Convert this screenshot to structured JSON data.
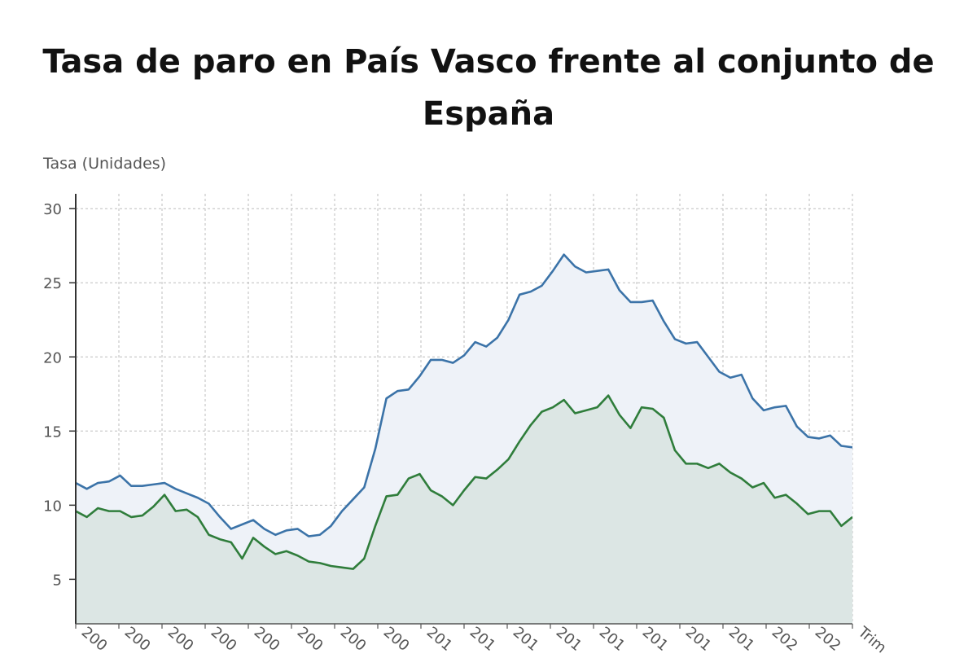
{
  "chart_data": {
    "type": "area",
    "title": "Tasa de paro en País Vasco frente al conjunto de España",
    "ylabel": "Tasa (Unidades)",
    "xlabel": "",
    "ylim": [
      2,
      31
    ],
    "yticks": [
      5,
      10,
      15,
      20,
      25,
      30
    ],
    "grid": true,
    "xtick_labels": [
      "200",
      "200",
      "200",
      "200",
      "200",
      "200",
      "200",
      "200",
      "201",
      "201",
      "201",
      "201",
      "201",
      "201",
      "201",
      "201",
      "202",
      "202",
      "Trim"
    ],
    "series": [
      {
        "color": "#3b73a8",
        "fill": "#eef2f8",
        "values": [
          11.5,
          11.1,
          11.5,
          11.6,
          12.0,
          11.3,
          11.3,
          11.4,
          11.5,
          11.1,
          10.8,
          10.5,
          10.1,
          9.2,
          8.4,
          8.7,
          9.0,
          8.4,
          8.0,
          8.3,
          8.4,
          7.9,
          8.0,
          8.6,
          9.6,
          10.4,
          11.2,
          13.8,
          17.2,
          17.7,
          17.8,
          18.7,
          19.8,
          19.8,
          19.6,
          20.1,
          21.0,
          20.7,
          21.3,
          22.5,
          24.2,
          24.4,
          24.8,
          25.8,
          26.9,
          26.1,
          25.7,
          25.8,
          25.9,
          24.5,
          23.7,
          23.7,
          23.8,
          22.4,
          21.2,
          20.9,
          21.0,
          20.0,
          19.0,
          18.6,
          18.8,
          17.2,
          16.4,
          16.6,
          16.7,
          15.3,
          14.6,
          14.5,
          14.7,
          14.0,
          13.9
        ]
      },
      {
        "color": "#2f7d3b",
        "fill": "#dce6e4",
        "values": [
          9.6,
          9.2,
          9.8,
          9.6,
          9.6,
          9.2,
          9.3,
          9.9,
          10.7,
          9.6,
          9.7,
          9.2,
          8.0,
          7.7,
          7.5,
          6.4,
          7.8,
          7.2,
          6.7,
          6.9,
          6.6,
          6.2,
          6.1,
          5.9,
          5.8,
          5.7,
          6.4,
          8.6,
          10.6,
          10.7,
          11.8,
          12.1,
          11.0,
          10.6,
          10.0,
          11.0,
          11.9,
          11.8,
          12.4,
          13.1,
          14.3,
          15.4,
          16.3,
          16.6,
          17.1,
          16.2,
          16.4,
          16.6,
          17.4,
          16.1,
          15.2,
          16.6,
          16.5,
          15.9,
          13.7,
          12.8,
          12.8,
          12.5,
          12.8,
          12.2,
          11.8,
          11.2,
          11.5,
          10.5,
          10.7,
          10.1,
          9.4,
          9.6,
          9.6,
          8.6,
          9.2
        ]
      }
    ]
  }
}
